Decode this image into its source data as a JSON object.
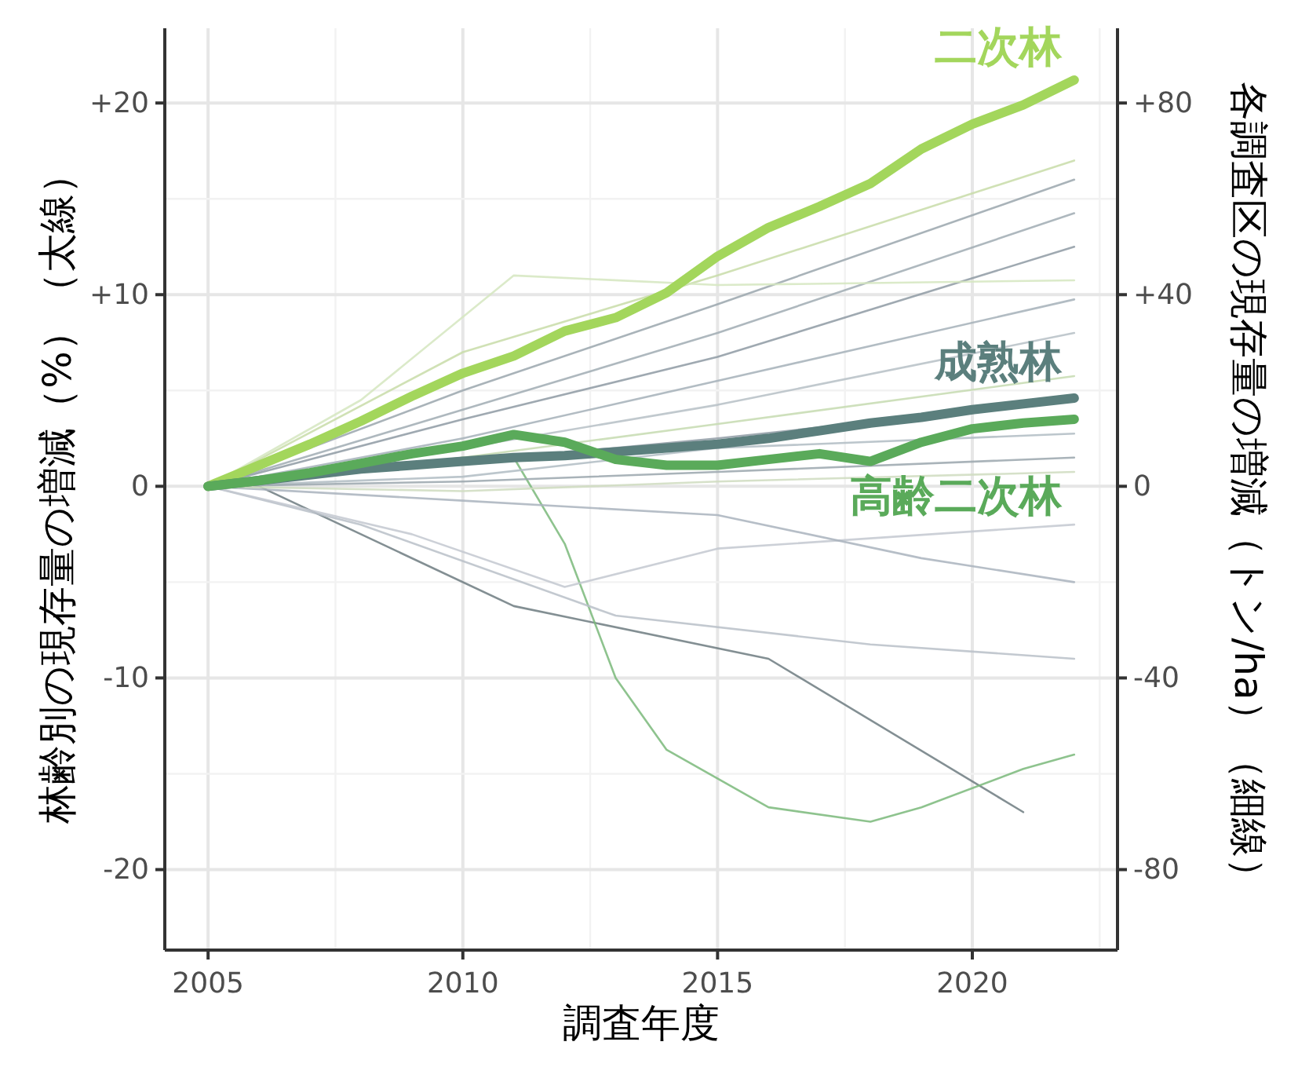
{
  "chart_data": {
    "type": "line",
    "xlabel": "調査年度",
    "ylabel": "林齢別の現存量の増減（%）（太線）",
    "y2label": "各調査区の現存量の増減（トン/ha）（細線）",
    "x": [
      2005,
      2006,
      2007,
      2008,
      2009,
      2010,
      2011,
      2012,
      2013,
      2014,
      2015,
      2016,
      2017,
      2018,
      2019,
      2020,
      2021,
      2022
    ],
    "xlim": [
      2004.15,
      2022.85
    ],
    "xticks": [
      2005,
      2010,
      2015,
      2020
    ],
    "ylim": [
      -24.2,
      23.9
    ],
    "yticks": [
      {
        "value": 20,
        "label": "+20"
      },
      {
        "value": 10,
        "label": "+10"
      },
      0,
      -10,
      -20
    ],
    "y2lim": [
      -96.8,
      95.6
    ],
    "y2ticks": [
      {
        "value": 80,
        "label": "+80"
      },
      {
        "value": 40,
        "label": "+40"
      },
      0,
      -40,
      -80
    ],
    "grid": true,
    "legend": false,
    "series": [
      {
        "axis": "y2",
        "color": "#6d7b80",
        "x": [
          2005,
          2006,
          2011,
          2016,
          2021
        ],
        "values": [
          0,
          0,
          -25,
          -36,
          -68
        ]
      },
      {
        "axis": "y2",
        "color": "#7ab87a",
        "x": [
          2005,
          2008,
          2010,
          2011,
          2012,
          2013,
          2014,
          2016,
          2018,
          2019,
          2021,
          2022
        ],
        "values": [
          0,
          3,
          6,
          6,
          -12,
          -40,
          -55,
          -67,
          -70,
          -67,
          -59,
          -56
        ]
      },
      {
        "axis": "y2",
        "color": "#b9c0c8",
        "x": [
          2005,
          2008,
          2013,
          2018,
          2022
        ],
        "values": [
          0,
          -8,
          -27,
          -33,
          -36
        ]
      },
      {
        "axis": "y2",
        "color": "#c3c8d0",
        "x": [
          2005,
          2009,
          2012,
          2015,
          2022
        ],
        "values": [
          0,
          -10,
          -21,
          -13,
          -8
        ]
      },
      {
        "axis": "y2",
        "color": "#a9b3bd",
        "x": [
          2005,
          2010,
          2015,
          2019,
          2022
        ],
        "values": [
          0,
          -3,
          -6,
          -15,
          -20
        ]
      },
      {
        "axis": "y2",
        "color": "#9aa6ad",
        "x": [
          2005,
          2010,
          2015,
          2022
        ],
        "values": [
          0,
          20,
          38,
          64
        ]
      },
      {
        "axis": "y2",
        "color": "#c8dca8",
        "x": [
          2005,
          2010,
          2015,
          2022
        ],
        "values": [
          0,
          28,
          44,
          68
        ]
      },
      {
        "axis": "y2",
        "color": "#a0abb3",
        "x": [
          2005,
          2010,
          2015,
          2022
        ],
        "values": [
          0,
          16,
          32,
          57
        ]
      },
      {
        "axis": "y2",
        "color": "#8e9aa3",
        "x": [
          2005,
          2010,
          2015,
          2022
        ],
        "values": [
          0,
          14,
          27,
          50
        ]
      },
      {
        "axis": "y2",
        "color": "#d5e6bf",
        "x": [
          2005,
          2008,
          2011,
          2015,
          2022
        ],
        "values": [
          0,
          18,
          44,
          42,
          43
        ]
      },
      {
        "axis": "y2",
        "color": "#a4b0b8",
        "x": [
          2005,
          2010,
          2015,
          2022
        ],
        "values": [
          0,
          10,
          22,
          39
        ]
      },
      {
        "axis": "y2",
        "color": "#b6c0c6",
        "x": [
          2005,
          2010,
          2015,
          2022
        ],
        "values": [
          0,
          8,
          17,
          32
        ]
      },
      {
        "axis": "y2",
        "color": "#c6dab0",
        "x": [
          2005,
          2010,
          2015,
          2022
        ],
        "values": [
          0,
          6,
          13,
          23
        ]
      },
      {
        "axis": "y2",
        "color": "#8f9ba4",
        "x": [
          2005,
          2010,
          2015,
          2022
        ],
        "values": [
          0,
          5,
          10,
          18
        ]
      },
      {
        "axis": "y2",
        "color": "#b0bcc3",
        "x": [
          2005,
          2010,
          2015,
          2022
        ],
        "values": [
          0,
          2,
          8,
          11
        ]
      },
      {
        "axis": "y2",
        "color": "#9aa6ad",
        "x": [
          2005,
          2010,
          2015,
          2022
        ],
        "values": [
          0,
          1,
          3,
          6
        ]
      },
      {
        "axis": "y2",
        "color": "#cfdcc0",
        "x": [
          2005,
          2010,
          2015,
          2022
        ],
        "values": [
          0,
          -1,
          1,
          3
        ]
      },
      {
        "name": "二次林",
        "color": "#a3d65c",
        "values": [
          0,
          1.1,
          2.2,
          3.4,
          4.7,
          5.9,
          6.8,
          8.1,
          8.8,
          10.1,
          12.0,
          13.5,
          14.6,
          15.8,
          17.6,
          18.9,
          19.9,
          21.2
        ]
      },
      {
        "name": "成熟林",
        "color": "#5b7f7d",
        "values": [
          0,
          0.3,
          0.6,
          0.9,
          1.1,
          1.3,
          1.5,
          1.6,
          1.8,
          2.0,
          2.2,
          2.5,
          2.9,
          3.3,
          3.6,
          4.0,
          4.3,
          4.6
        ]
      },
      {
        "name": "高齢二次林",
        "color": "#5aaa5a",
        "values": [
          0,
          0.3,
          0.7,
          1.2,
          1.7,
          2.1,
          2.7,
          2.3,
          1.4,
          1.1,
          1.1,
          1.4,
          1.7,
          1.3,
          2.3,
          3.0,
          3.3,
          3.5
        ]
      }
    ]
  }
}
